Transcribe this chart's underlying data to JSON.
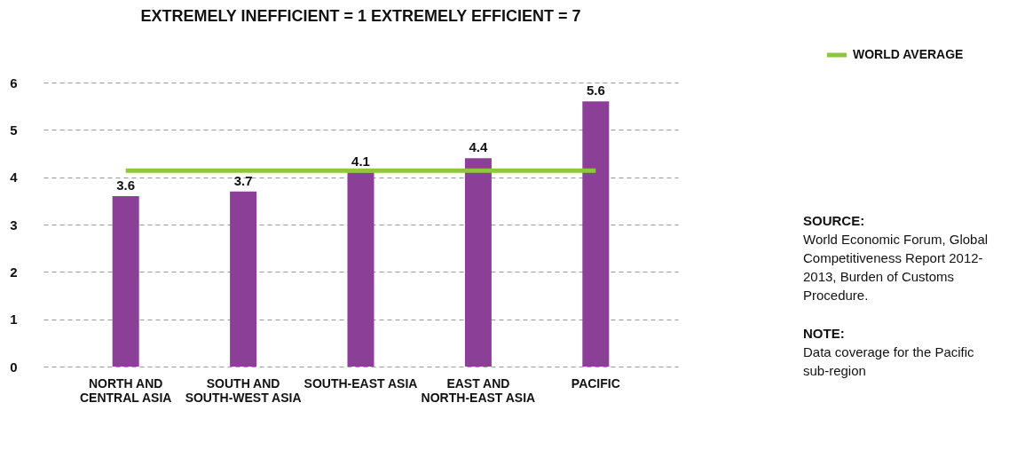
{
  "chart_data": {
    "type": "bar",
    "title": "EXTREMELY INEFFICIENT = 1 EXTREMELY EFFICIENT = 7",
    "categories": [
      "NORTH AND CENTRAL ASIA",
      "SOUTH AND SOUTH-WEST ASIA",
      "SOUTH-EAST ASIA",
      "EAST AND NORTH-EAST ASIA",
      "PACIFIC"
    ],
    "values": [
      3.6,
      3.7,
      4.1,
      4.4,
      5.6
    ],
    "color": "#8b3f96",
    "data_labels": true,
    "ylim": [
      0,
      6
    ],
    "yticks": [
      0,
      1,
      2,
      3,
      4,
      5,
      6
    ],
    "grid": "y",
    "ref_lines": [
      {
        "axis": "y",
        "value": 4.14,
        "label": "WORLD AVERAGE",
        "color": "#8dc63f"
      }
    ],
    "legend": "top right",
    "annotations": [
      "SOURCE:",
      "World Economic Forum, Global Competitiveness Report 2012-2013, Burden of Customs Procedure.",
      "NOTE:",
      "Data coverage for the Pacific sub-region"
    ]
  }
}
